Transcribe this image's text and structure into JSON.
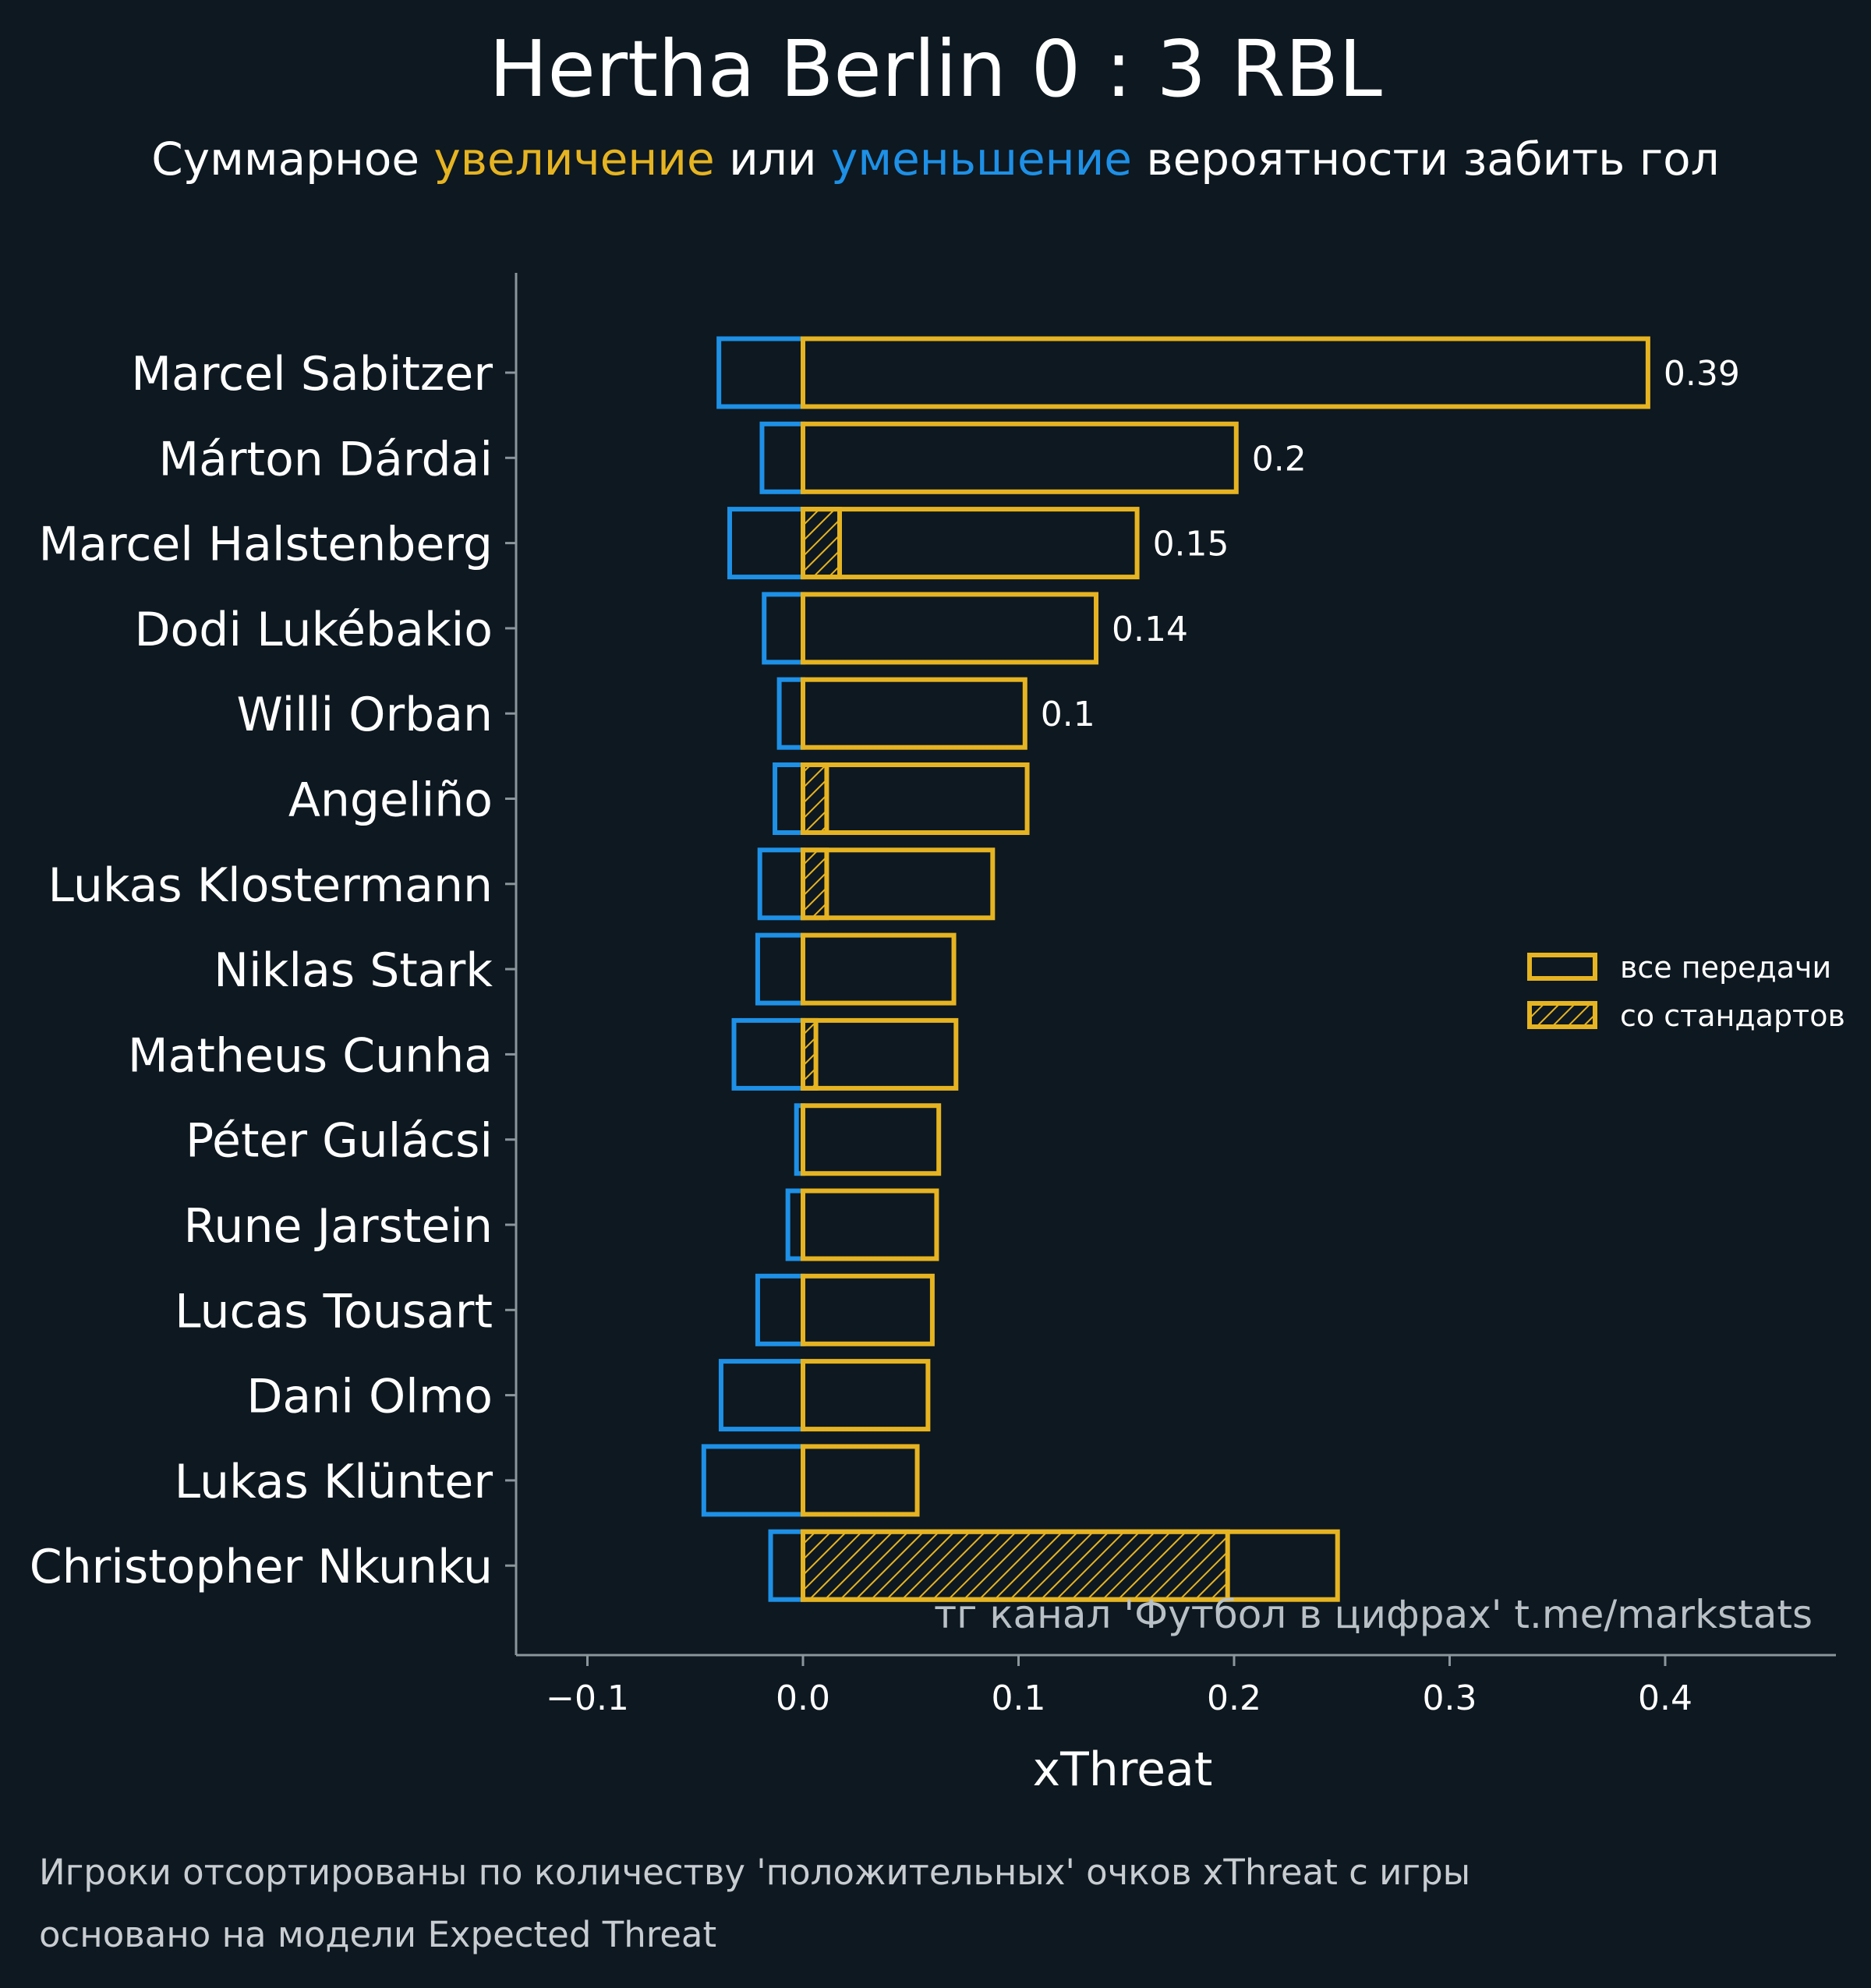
{
  "chart_data": {
    "type": "bar",
    "orientation": "horizontal",
    "title": "Hertha Berlin 0 : 3 RBL",
    "subtitle": {
      "prefix": "Суммарное ",
      "increase": "увеличение",
      "middle": " или ",
      "decrease": "уменьшение",
      "suffix": " вероятности забить гол"
    },
    "xlabel": "xThreat",
    "xlim": [
      -0.135,
      0.48
    ],
    "xticks": [
      -0.1,
      0.0,
      0.1,
      0.2,
      0.3,
      0.4
    ],
    "xtick_labels": [
      "−0.1",
      "0.0",
      "0.1",
      "0.2",
      "0.3",
      "0.4"
    ],
    "categories": [
      "Marcel Sabitzer",
      "Márton Dárdai",
      "Marcel Halstenberg",
      "Dodi Lukébakio",
      "Willi Orban",
      "Angeliño",
      "Lukas Klostermann",
      "Niklas Stark",
      "Matheus Cunha",
      "Péter Gulácsi",
      "Rune Jarstein",
      "Lucas Tousart",
      "Dani Olmo",
      "Lukas Klünter",
      "Christopher Nkunku"
    ],
    "series": [
      {
        "name": "все передачи",
        "key": "positive",
        "values": [
          0.392,
          0.201,
          0.155,
          0.136,
          0.103,
          0.104,
          0.088,
          0.07,
          0.071,
          0.063,
          0.062,
          0.06,
          0.058,
          0.053,
          0.248
        ]
      },
      {
        "name": "со стандартов",
        "key": "set_pieces",
        "values": [
          0,
          0,
          0.017,
          0,
          0,
          0.011,
          0.011,
          0,
          0.006,
          0,
          0,
          0,
          0,
          0,
          0.197
        ]
      },
      {
        "name": "negative",
        "key": "negative",
        "values": [
          -0.039,
          -0.019,
          -0.034,
          -0.018,
          -0.011,
          -0.013,
          -0.02,
          -0.021,
          -0.032,
          -0.003,
          -0.007,
          -0.021,
          -0.038,
          -0.046,
          -0.015
        ]
      }
    ],
    "value_labels": [
      "0.39",
      "0.2",
      "0.15",
      "0.14",
      "0.1",
      "",
      "",
      "",
      "",
      "",
      "",
      "",
      "",
      "",
      ""
    ],
    "legend": {
      "position": "right",
      "items": [
        "все передачи",
        "со стандартов"
      ]
    },
    "watermark": "тг канал 'Футбол в цифрах'  t.me/markstats",
    "colors": {
      "positive": "#e6b422",
      "negative": "#1e90e6",
      "background": "#0e1820",
      "axis": "#8a959c",
      "text": "#ffffff"
    }
  },
  "footnotes": [
    "Игроки отсортированы по количеству 'положительных' очков xThreat с игры",
    "основано на модели Expected Threat"
  ]
}
